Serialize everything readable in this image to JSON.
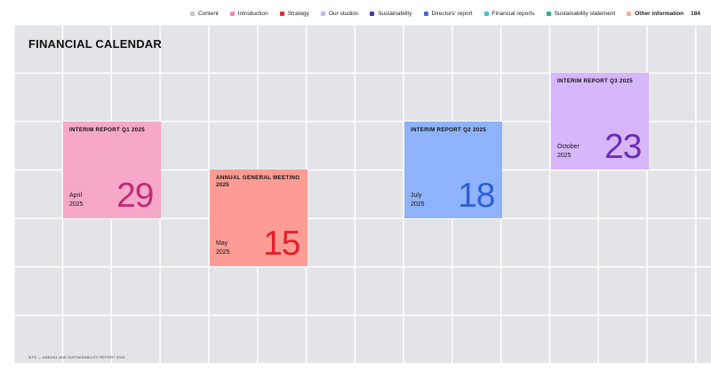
{
  "nav": {
    "items": [
      {
        "label": "Content",
        "color": "#c6c6c6",
        "active": false
      },
      {
        "label": "Introduction",
        "color": "#f283b3",
        "active": false
      },
      {
        "label": "Strategy",
        "color": "#e8292e",
        "active": false
      },
      {
        "label": "Our studios",
        "color": "#d5aef8",
        "active": false
      },
      {
        "label": "Sustainability",
        "color": "#5e2ca5",
        "active": false
      },
      {
        "label": "Directors' report",
        "color": "#3c6fe0",
        "active": false
      },
      {
        "label": "Financial reports",
        "color": "#38c8d8",
        "active": false
      },
      {
        "label": "Sustainability statement",
        "color": "#1fb58f",
        "active": false
      },
      {
        "label": "Other information",
        "color": "#f3b38e",
        "active": true
      }
    ],
    "page_number": "184"
  },
  "page": {
    "title": "FINANCIAL CALENDAR",
    "footer": "MTG — ANNUAL AND SUSTAINABILITY REPORT 2024"
  },
  "events": [
    {
      "id": "q1",
      "title": "INTERIM REPORT Q1 2025",
      "month": "April",
      "year": "2025",
      "day": "29",
      "bg": "#f7a8c9",
      "accent": "#c12c73"
    },
    {
      "id": "agm",
      "title": "ANNUAL GENERAL MEETING 2025",
      "month": "May",
      "year": "2025",
      "day": "15",
      "bg": "#fd9c95",
      "accent": "#e3202a"
    },
    {
      "id": "q2",
      "title": "INTERIM REPORT Q2 2025",
      "month": "July",
      "year": "2025",
      "day": "18",
      "bg": "#8fb3fb",
      "accent": "#2f5fd6"
    },
    {
      "id": "q3",
      "title": "INTERIM REPORT Q3 2025",
      "month": "October",
      "year": "2025",
      "day": "23",
      "bg": "#d8b6fb",
      "accent": "#6a2fb5"
    }
  ]
}
